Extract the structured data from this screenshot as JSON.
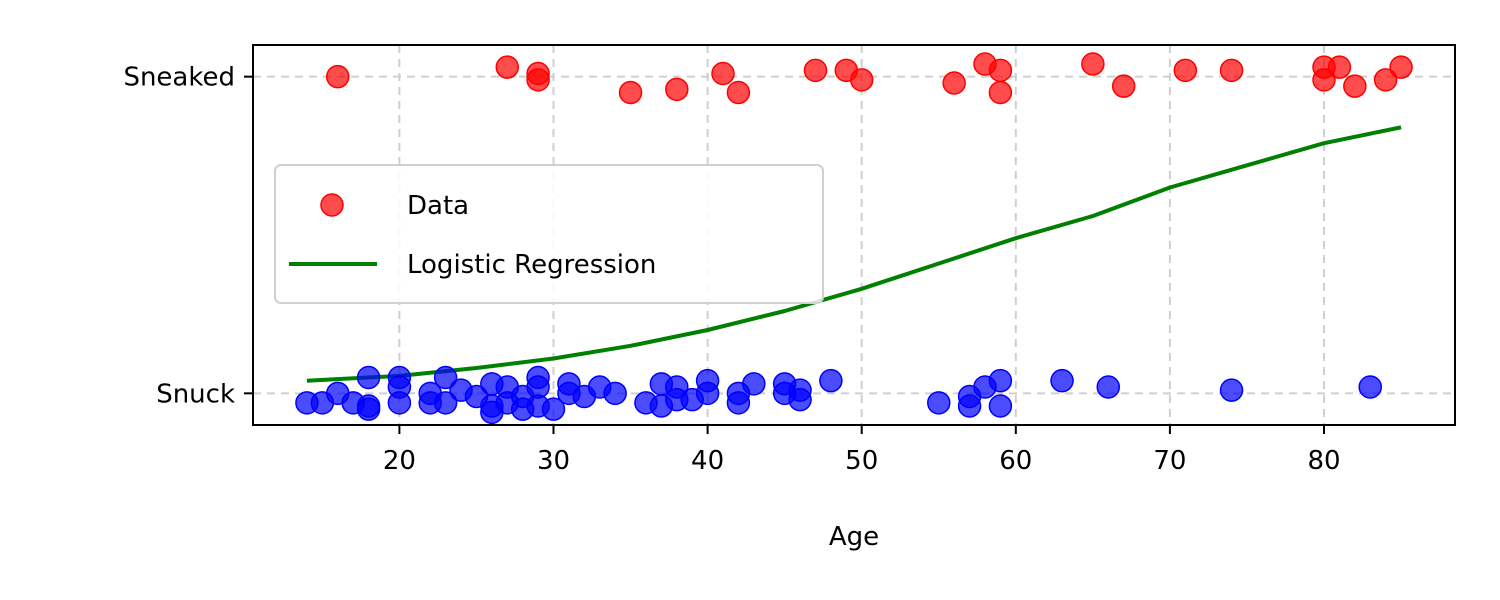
{
  "chart_data": {
    "type": "scatter",
    "xlabel": "Age",
    "ylabel": "",
    "xlim": [
      10.5,
      88.5
    ],
    "ylim": [
      -0.1,
      1.1
    ],
    "x_ticks": [
      20,
      30,
      40,
      50,
      60,
      70,
      80
    ],
    "y_ticks": [
      {
        "value": 0,
        "label": "Snuck"
      },
      {
        "value": 1,
        "label": "Sneaked"
      }
    ],
    "grid": true,
    "legend_position": "center-left",
    "legend": {
      "data_label": "Data",
      "line_label": "Logistic Regression"
    },
    "colors": {
      "sneaked": "#ff0000",
      "snuck": "#0000ff",
      "line": "#008000"
    },
    "series": [
      {
        "name": "Data",
        "category": "Sneaked",
        "points": [
          [
            16,
            1.0
          ],
          [
            27,
            1.03
          ],
          [
            29,
            1.01
          ],
          [
            29,
            0.99
          ],
          [
            35,
            0.95
          ],
          [
            38,
            0.96
          ],
          [
            41,
            1.01
          ],
          [
            42,
            0.95
          ],
          [
            47,
            1.02
          ],
          [
            49,
            1.02
          ],
          [
            50,
            0.99
          ],
          [
            56,
            0.98
          ],
          [
            58,
            1.04
          ],
          [
            59,
            1.02
          ],
          [
            59,
            0.95
          ],
          [
            65,
            1.04
          ],
          [
            67,
            0.97
          ],
          [
            71,
            1.02
          ],
          [
            74,
            1.02
          ],
          [
            80,
            1.03
          ],
          [
            80,
            0.99
          ],
          [
            81,
            1.03
          ],
          [
            82,
            0.97
          ],
          [
            84,
            0.99
          ],
          [
            85,
            1.03
          ]
        ]
      },
      {
        "name": "Data",
        "category": "Snuck",
        "points": [
          [
            14,
            -0.03
          ],
          [
            15,
            -0.03
          ],
          [
            16,
            0.0
          ],
          [
            17,
            -0.03
          ],
          [
            18,
            0.05
          ],
          [
            18,
            -0.04
          ],
          [
            18,
            -0.05
          ],
          [
            20,
            0.05
          ],
          [
            20,
            0.02
          ],
          [
            20,
            -0.03
          ],
          [
            22,
            0.0
          ],
          [
            22,
            -0.03
          ],
          [
            23,
            0.05
          ],
          [
            23,
            -0.03
          ],
          [
            24,
            0.01
          ],
          [
            25,
            -0.01
          ],
          [
            26,
            0.03
          ],
          [
            26,
            -0.04
          ],
          [
            26,
            -0.06
          ],
          [
            27,
            0.02
          ],
          [
            27,
            -0.03
          ],
          [
            28,
            -0.01
          ],
          [
            28,
            -0.05
          ],
          [
            29,
            0.05
          ],
          [
            29,
            0.02
          ],
          [
            29,
            -0.04
          ],
          [
            30,
            -0.05
          ],
          [
            31,
            0.03
          ],
          [
            31,
            0.0
          ],
          [
            32,
            -0.01
          ],
          [
            33,
            0.02
          ],
          [
            34,
            0.0
          ],
          [
            36,
            -0.03
          ],
          [
            37,
            0.03
          ],
          [
            37,
            -0.04
          ],
          [
            38,
            0.02
          ],
          [
            38,
            -0.02
          ],
          [
            39,
            -0.02
          ],
          [
            40,
            0.04
          ],
          [
            40,
            0.0
          ],
          [
            42,
            0.0
          ],
          [
            42,
            -0.03
          ],
          [
            43,
            0.03
          ],
          [
            45,
            0.03
          ],
          [
            45,
            0.0
          ],
          [
            46,
            0.01
          ],
          [
            46,
            -0.02
          ],
          [
            48,
            0.04
          ],
          [
            55,
            -0.03
          ],
          [
            57,
            -0.01
          ],
          [
            57,
            -0.04
          ],
          [
            58,
            0.02
          ],
          [
            59,
            0.04
          ],
          [
            59,
            -0.04
          ],
          [
            63,
            0.04
          ],
          [
            66,
            0.02
          ],
          [
            74,
            0.01
          ],
          [
            83,
            0.02
          ]
        ]
      },
      {
        "name": "Logistic Regression",
        "line": [
          [
            14,
            0.04
          ],
          [
            20,
            0.055
          ],
          [
            25,
            0.08
          ],
          [
            30,
            0.11
          ],
          [
            35,
            0.15
          ],
          [
            40,
            0.2
          ],
          [
            45,
            0.26
          ],
          [
            50,
            0.33
          ],
          [
            55,
            0.41
          ],
          [
            60,
            0.49
          ],
          [
            65,
            0.56
          ],
          [
            70,
            0.65
          ],
          [
            75,
            0.72
          ],
          [
            80,
            0.79
          ],
          [
            85,
            0.84
          ]
        ]
      }
    ]
  }
}
